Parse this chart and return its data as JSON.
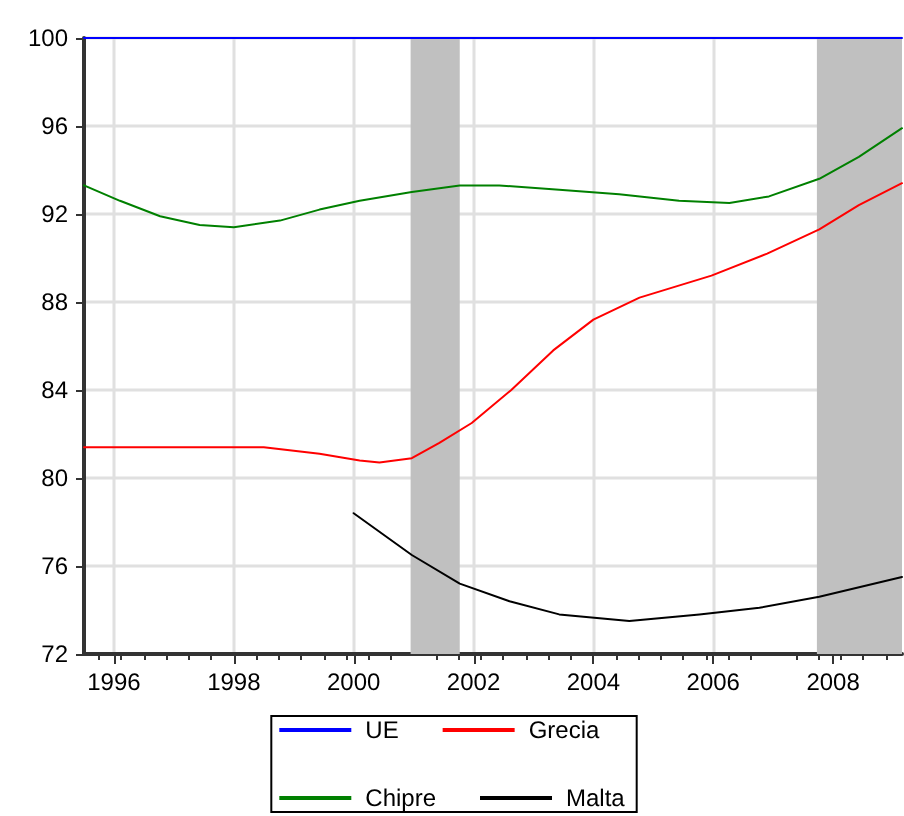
{
  "chart_data": {
    "type": "line",
    "xlim": [
      1995.5,
      2009.15
    ],
    "ylim": [
      72,
      100
    ],
    "yticks": [
      72,
      76,
      80,
      84,
      88,
      92,
      96,
      100
    ],
    "xticks": [
      1996,
      1998,
      2000,
      2002,
      2004,
      2006,
      2008
    ],
    "grid": true,
    "legend": "bottom",
    "line_style": "solid",
    "marker": "none",
    "bands": [
      {
        "axis": "x",
        "from": 2000.95,
        "to": 2001.77,
        "color": "#c0c0c0"
      },
      {
        "axis": "x",
        "from": 2007.73,
        "to": 2009.15,
        "color": "#c0c0c0"
      }
    ],
    "series": [
      {
        "name": "UE",
        "color": "#0000ff",
        "x": [
          1995.5,
          2009.15
        ],
        "values": [
          100,
          100
        ]
      },
      {
        "name": "Grecia",
        "color": "#ff0000",
        "x": [
          1995.5,
          1996.5,
          1997.5,
          1998.5,
          1999.43,
          2000.1,
          2000.43,
          2000.97,
          2001.43,
          2001.97,
          2002.63,
          2003.33,
          2004,
          2004.77,
          2005.97,
          2006.9,
          2007.77,
          2008.43,
          2009.15
        ],
        "values": [
          81.4,
          81.4,
          81.4,
          81.4,
          81.1,
          80.8,
          80.7,
          80.9,
          81.6,
          82.5,
          84.0,
          85.8,
          87.2,
          88.2,
          89.2,
          90.2,
          91.3,
          92.4,
          93.4
        ]
      },
      {
        "name": "Chipre",
        "color": "#008000",
        "x": [
          1995.5,
          1996.1,
          1996.77,
          1997.43,
          1998,
          1998.77,
          1999.43,
          2000.1,
          2000.97,
          2001.77,
          2002.43,
          2003.43,
          2004.43,
          2005.43,
          2006.27,
          2006.93,
          2007.77,
          2008.43,
          2009.15
        ],
        "values": [
          93.3,
          92.6,
          91.9,
          91.5,
          91.4,
          91.7,
          92.2,
          92.6,
          93.0,
          93.3,
          93.3,
          93.1,
          92.9,
          92.6,
          92.5,
          92.8,
          93.6,
          94.6,
          95.9
        ]
      },
      {
        "name": "Malta",
        "color": "#000000",
        "x": [
          2000,
          2000.97,
          2001.77,
          2002.6,
          2003.43,
          2004.6,
          2005.77,
          2006.77,
          2007.77,
          2009.15
        ],
        "values": [
          78.4,
          76.5,
          75.2,
          74.4,
          73.8,
          73.5,
          73.8,
          74.1,
          74.6,
          75.5
        ]
      }
    ]
  }
}
